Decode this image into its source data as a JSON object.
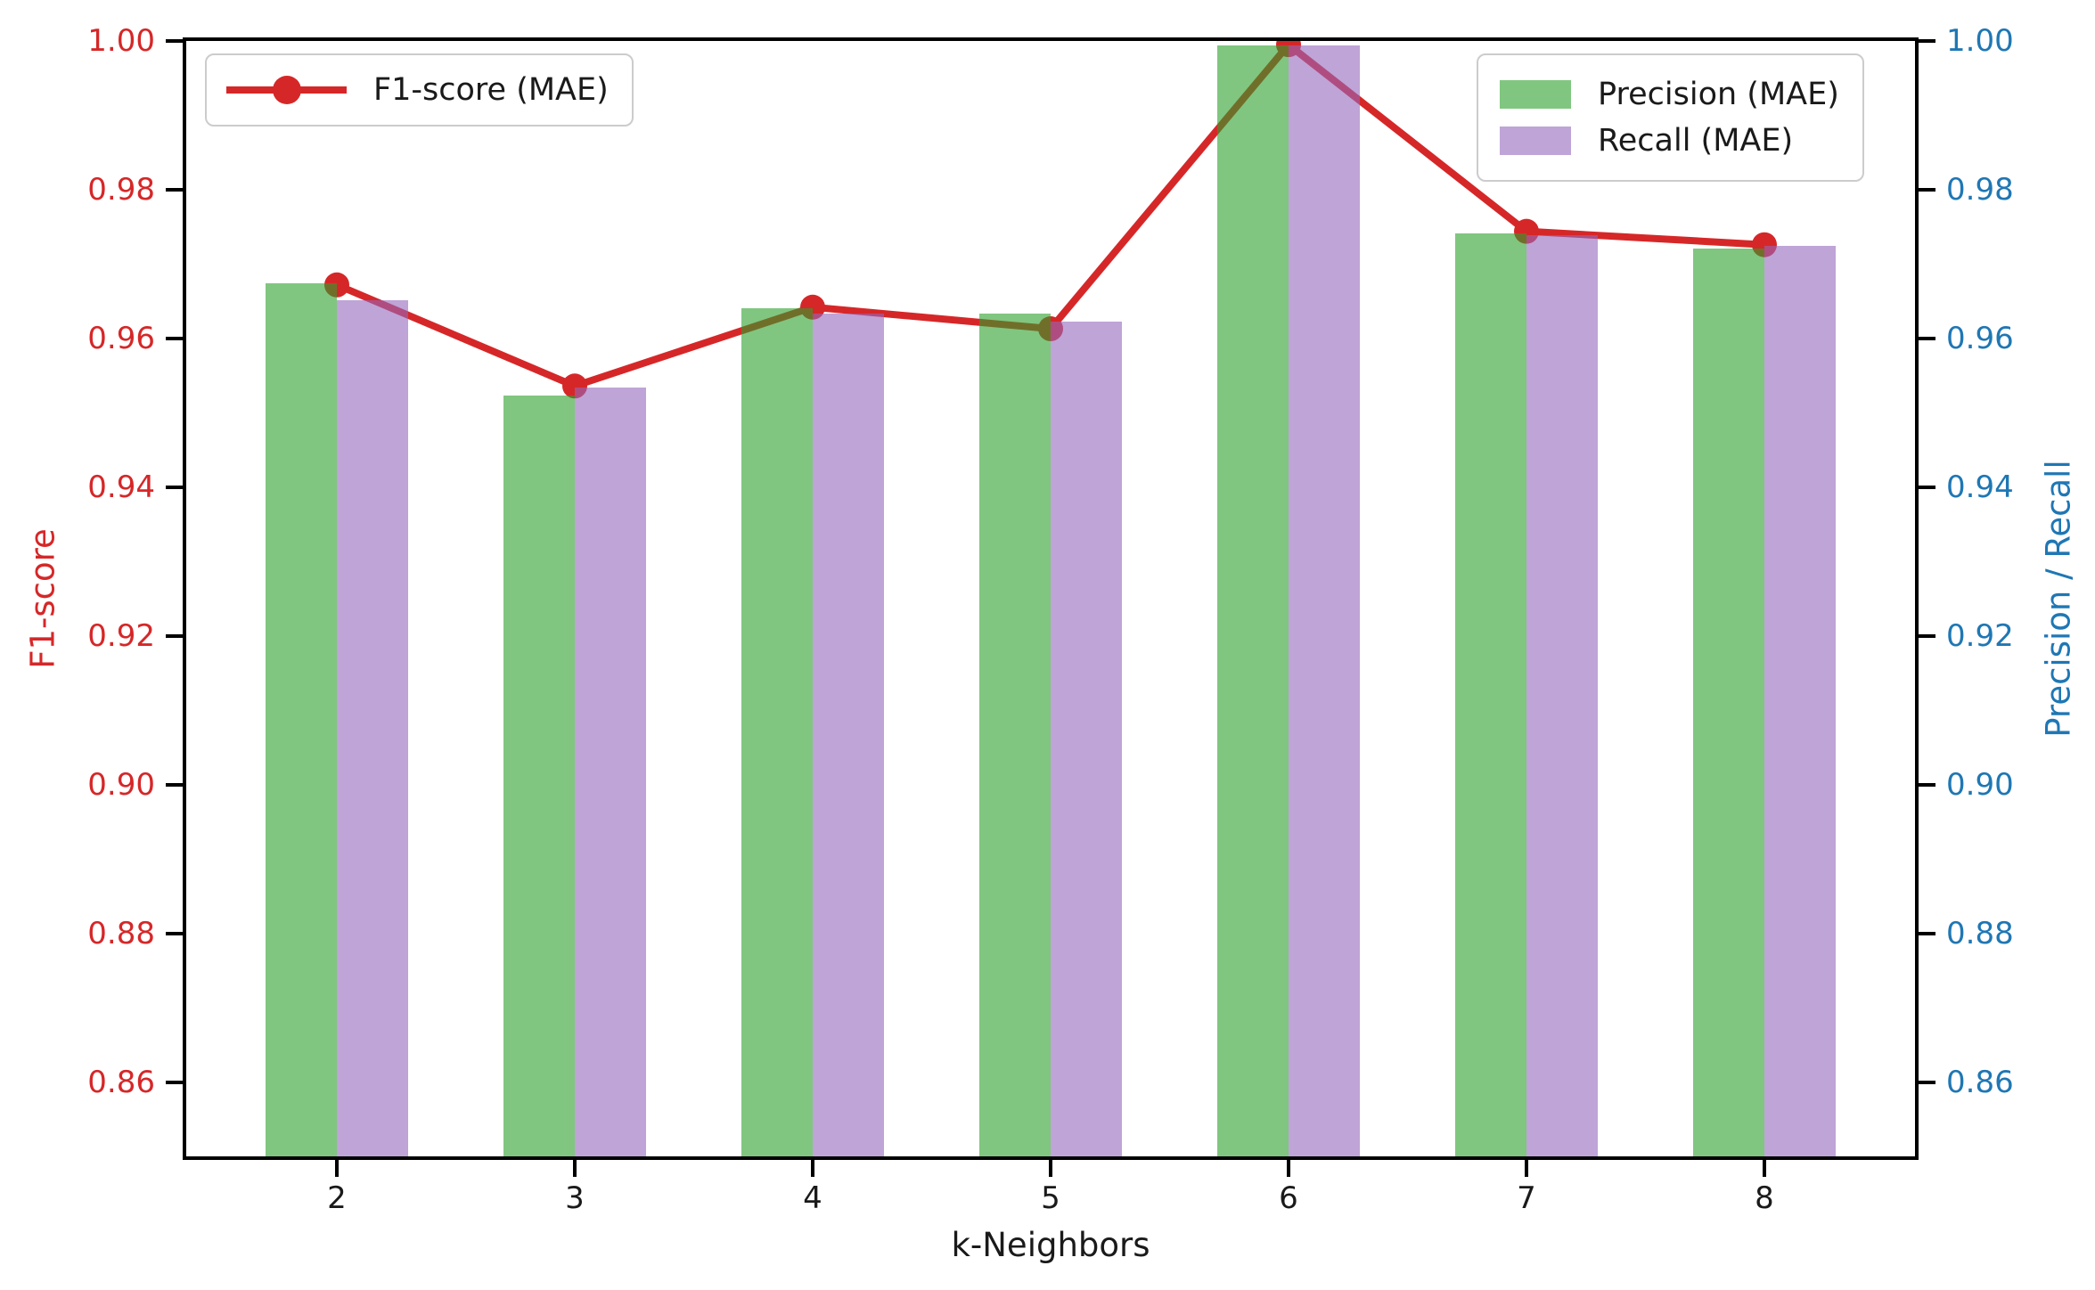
{
  "figure": {
    "background": "#ffffff"
  },
  "chart_data": {
    "type": "bar",
    "subtype": "dual-axis bar + line combo",
    "title": "",
    "xlabel": "k-Neighbors",
    "ylabel_left": "F1-score",
    "ylabel_right": "Precision / Recall",
    "categories": [
      "2",
      "3",
      "4",
      "5",
      "6",
      "7",
      "8"
    ],
    "ylim": [
      0.85,
      1.0
    ],
    "yticks": [
      "0.86",
      "0.88",
      "0.90",
      "0.92",
      "0.94",
      "0.96",
      "0.98",
      "1.00"
    ],
    "grid": false,
    "legend_positions": {
      "line_legend": "upper left",
      "bar_legend": "upper right"
    },
    "series": [
      {
        "name": "F1-score (MAE)",
        "type": "line",
        "axis": "left",
        "color": "#d62728",
        "marker": "circle",
        "values": [
          0.9672,
          0.9536,
          0.9642,
          0.9613,
          0.9995,
          0.9744,
          0.9726
        ]
      },
      {
        "name": "Precision (MAE)",
        "type": "bar",
        "axis": "right",
        "color": "#2ca02c",
        "alpha": 0.6,
        "values": [
          0.9674,
          0.9523,
          0.9641,
          0.9633,
          0.9994,
          0.9741,
          0.9721
        ]
      },
      {
        "name": "Recall (MAE)",
        "type": "bar",
        "axis": "right",
        "color": "#9467bd",
        "alpha": 0.6,
        "values": [
          0.9651,
          0.9534,
          0.9634,
          0.9623,
          0.9994,
          0.9739,
          0.9724
        ]
      }
    ],
    "axis_colors": {
      "left": "#d62728",
      "right": "#1f77b4",
      "x": "#1a1a1a"
    }
  }
}
